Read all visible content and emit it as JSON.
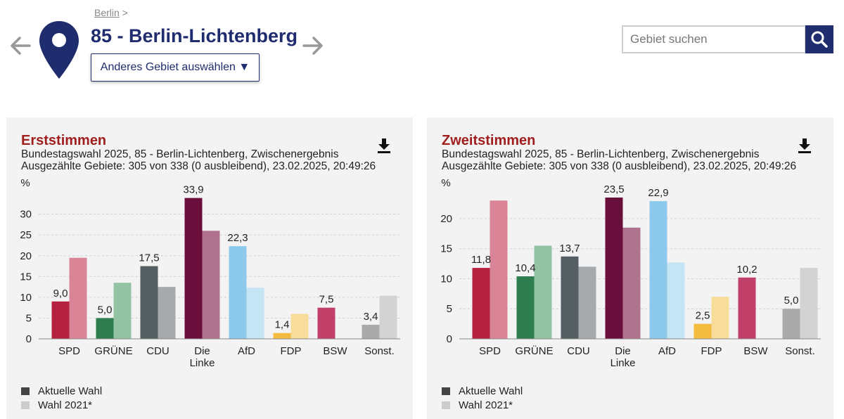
{
  "header": {
    "breadcrumb_link": "Berlin",
    "breadcrumb_sep": ">",
    "title": "85 - Berlin-Lichtenberg",
    "area_button": "Anderes Gebiet auswählen ▼",
    "search_placeholder": "Gebiet suchen"
  },
  "colors": {
    "navy": "#1f2d6e",
    "title_red": "#a01e1e",
    "legend_current": "#444444",
    "legend_previous": "#cccccc"
  },
  "legend": {
    "current": "Aktuelle Wahl",
    "previous": "Wahl 2021*"
  },
  "chart_data": [
    {
      "type": "bar",
      "title": "Erststimmen",
      "subtitle_1": "Bundestagswahl 2025, 85 - Berlin-Lichtenberg, Zwischenergebnis",
      "subtitle_2": "Ausgezählte Gebiete: 305 von 338 (0 ausbleibend), 23.02.2025, 20:49:26",
      "ylabel": "%",
      "ylim": [
        0,
        34
      ],
      "yticks": [
        0,
        5,
        10,
        15,
        20,
        25,
        30
      ],
      "categories": [
        "SPD",
        "GRÜNE",
        "CDU",
        "Die Linke",
        "AfD",
        "FDP",
        "BSW",
        "Sonst."
      ],
      "category_lines": [
        [
          "SPD"
        ],
        [
          "GRÜNE"
        ],
        [
          "CDU"
        ],
        [
          "Die",
          "Linke"
        ],
        [
          "AfD"
        ],
        [
          "FDP"
        ],
        [
          "BSW"
        ],
        [
          "Sonst."
        ]
      ],
      "series": [
        {
          "name": "Aktuelle Wahl",
          "values": [
            9.0,
            5.0,
            17.5,
            33.9,
            22.3,
            1.4,
            7.5,
            3.4
          ],
          "labels": [
            "9,0",
            "5,0",
            "17,5",
            "33,9",
            "22,3",
            "1,4",
            "7,5",
            "3,4"
          ]
        },
        {
          "name": "Wahl 2021*",
          "values": [
            19.5,
            13.5,
            12.5,
            26.0,
            12.3,
            6.0,
            null,
            10.4
          ]
        }
      ],
      "colors_current": [
        "#b5213e",
        "#2e7d4f",
        "#545e63",
        "#6a0f3c",
        "#8cc9ea",
        "#f3bc3e",
        "#c0406a",
        "#aaaaaa"
      ],
      "colors_previous": [
        "#d98597",
        "#94c3a4",
        "#a7aaac",
        "#b0738e",
        "#c5e4f4",
        "#f7dc9a",
        "#ddd",
        "#d3d3d3"
      ]
    },
    {
      "type": "bar",
      "title": "Zweitstimmen",
      "subtitle_1": "Bundestagswahl 2025, 85 - Berlin-Lichtenberg, Zwischenergebnis",
      "subtitle_2": "Ausgezählte Gebiete: 305 von 338 (0 ausbleibend), 23.02.2025, 20:49:26",
      "ylabel": "%",
      "ylim": [
        0,
        23.5
      ],
      "yticks": [
        0,
        5,
        10,
        15,
        20
      ],
      "categories": [
        "SPD",
        "GRÜNE",
        "CDU",
        "Die Linke",
        "AfD",
        "FDP",
        "BSW",
        "Sonst."
      ],
      "category_lines": [
        [
          "SPD"
        ],
        [
          "GRÜNE"
        ],
        [
          "CDU"
        ],
        [
          "Die",
          "Linke"
        ],
        [
          "AfD"
        ],
        [
          "FDP"
        ],
        [
          "BSW"
        ],
        [
          "Sonst."
        ]
      ],
      "series": [
        {
          "name": "Aktuelle Wahl",
          "values": [
            11.8,
            10.4,
            13.7,
            23.5,
            22.9,
            2.5,
            10.2,
            5.0
          ],
          "labels": [
            "11,8",
            "10,4",
            "13,7",
            "23,5",
            "22,9",
            "2,5",
            "10,2",
            "5,0"
          ]
        },
        {
          "name": "Wahl 2021*",
          "values": [
            23.0,
            15.5,
            12.0,
            18.5,
            12.7,
            7.0,
            null,
            11.8
          ]
        }
      ],
      "colors_current": [
        "#b5213e",
        "#2e7d4f",
        "#545e63",
        "#6a0f3c",
        "#8cc9ea",
        "#f3bc3e",
        "#c0406a",
        "#aaaaaa"
      ],
      "colors_previous": [
        "#d98597",
        "#94c3a4",
        "#a7aaac",
        "#b0738e",
        "#c5e4f4",
        "#f7dc9a",
        "#ddd",
        "#d3d3d3"
      ]
    }
  ]
}
